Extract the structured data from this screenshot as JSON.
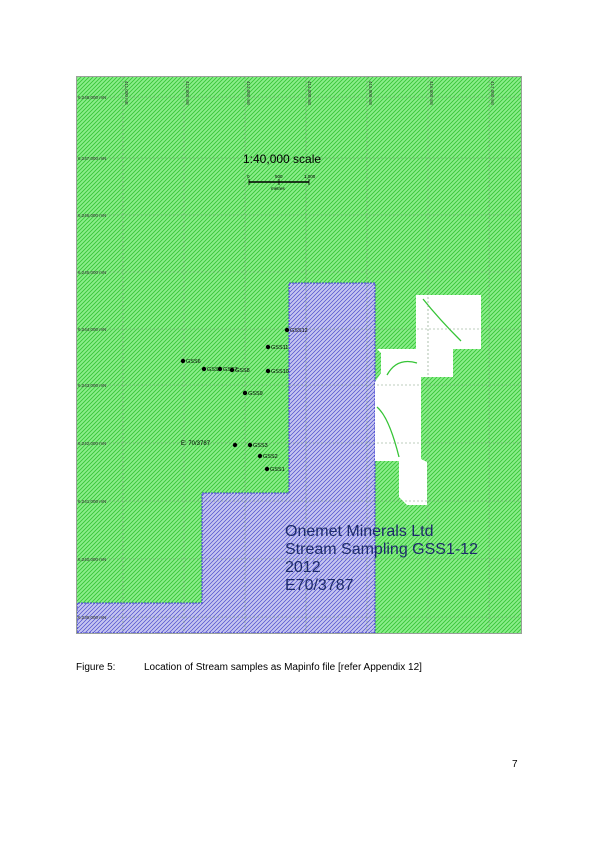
{
  "map": {
    "colors": {
      "land_fill": "#8bee8b",
      "hatch_green": "#36c436",
      "tenement_fill": "#c6c6f0",
      "tenement_hatch": "#4b4bcc",
      "tenement_border": "#3a3ad0",
      "grid_line": "#7a9a7a",
      "sample_point": "#000000"
    },
    "easting_labels": [
      "411,000 mE",
      "412,000 mE",
      "413,000 mE",
      "414,000 mE",
      "415,000 mE",
      "416,000 mE",
      "417,000 mE"
    ],
    "northing_labels": [
      "6,248,000 mN",
      "6,247,000 mN",
      "6,246,000 mN",
      "6,245,000 mN",
      "6,244,000 mN",
      "6,243,000 mN",
      "6,242,000 mN",
      "6,241,000 mN",
      "6,240,000 mN",
      "6,239,000 mN"
    ],
    "scale": {
      "title": "1:40,000 scale",
      "ticks": [
        "0",
        "500",
        "1,000"
      ],
      "unit": "metres"
    },
    "samples": [
      "GSS1",
      "GSS2",
      "GSS3",
      "GSS4",
      "GSS5",
      "GSS6",
      "GSS7",
      "GSS8",
      "GSS9",
      "GSS10",
      "GSS11",
      "GSS12"
    ],
    "tenement_label": "E: 70/3787",
    "title_block": [
      "Onemet Minerals Ltd",
      "Stream Sampling GSS1-12",
      "2012",
      "E70/3787"
    ]
  },
  "caption": {
    "label": "Figure 5:",
    "text": "Location of Stream samples as Mapinfo file [refer Appendix 12]"
  },
  "page_number": "7"
}
